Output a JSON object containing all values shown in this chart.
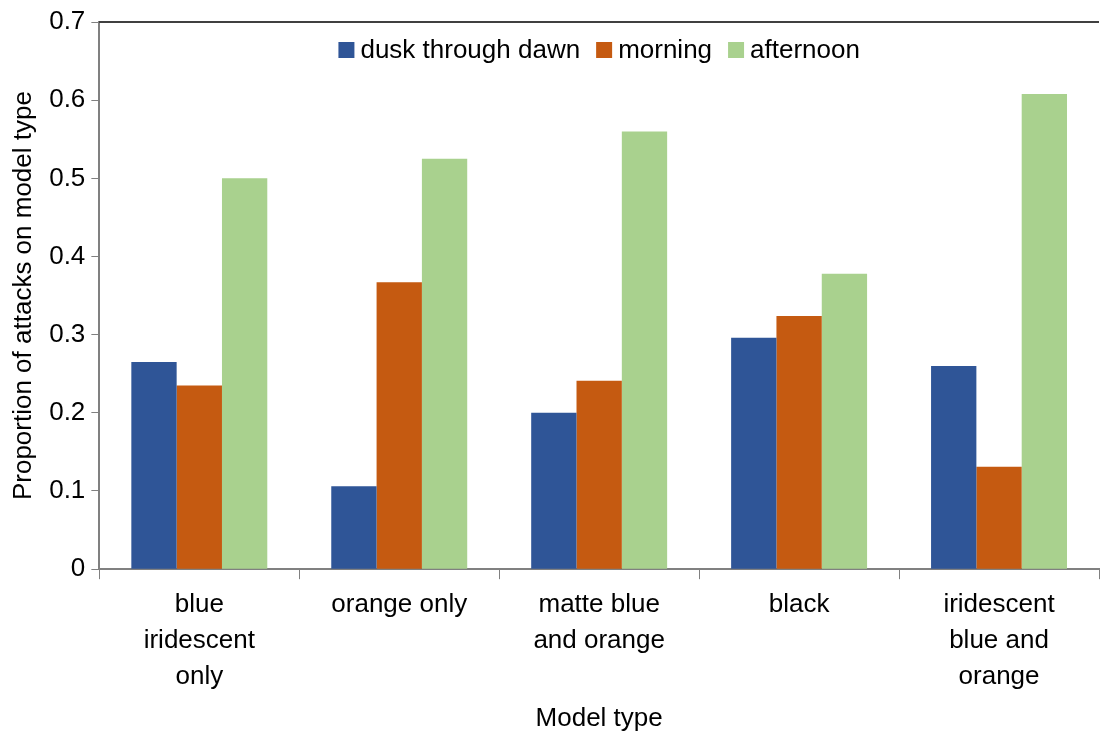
{
  "chart_data": {
    "type": "bar",
    "xlabel": "Model type",
    "ylabel": "Proportion of attacks on model type",
    "categories": [
      "blue iridescent only",
      "orange only",
      "matte blue and orange",
      "black",
      "iridescent blue and orange"
    ],
    "series": [
      {
        "name": "dusk through dawn",
        "color": "#2f5597",
        "values": [
          0.265,
          0.106,
          0.2,
          0.296,
          0.26
        ]
      },
      {
        "name": "morning",
        "color": "#c55a11",
        "values": [
          0.235,
          0.367,
          0.241,
          0.324,
          0.131
        ]
      },
      {
        "name": "afternoon",
        "color": "#a9d18e",
        "values": [
          0.5,
          0.525,
          0.56,
          0.378,
          0.608
        ]
      }
    ],
    "ylim": [
      0,
      0.7
    ],
    "yticks": [
      0,
      0.1,
      0.2,
      0.3,
      0.4,
      0.5,
      0.6,
      0.7
    ],
    "grid": false,
    "legend": "top"
  }
}
